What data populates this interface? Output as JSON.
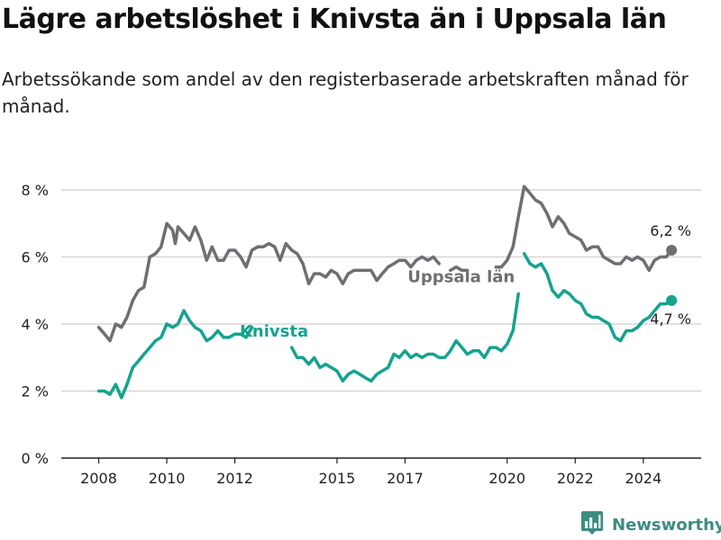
{
  "title": "Lägre arbetslöshet i Knivsta än i Uppsala län",
  "subtitle": "Arbetssökande som andel av den registerbaserade arbetskraften månad för månad.",
  "brand": "Newsworthy",
  "colors": {
    "uppsala": "#6e6e73",
    "knivsta": "#14a38f",
    "brand": "#3d8c80"
  },
  "chart_data": {
    "type": "line",
    "title": "",
    "xlabel": "",
    "ylabel": "",
    "ylim": [
      0,
      8
    ],
    "y_ticks": [
      0,
      2,
      4,
      6,
      8
    ],
    "y_tick_labels": [
      "0 %",
      "2 %",
      "4 %",
      "6 %",
      "8 %"
    ],
    "x_ticks": [
      2008,
      2010,
      2012,
      2015,
      2017,
      2020,
      2022,
      2024
    ],
    "x_tick_labels": [
      "2008",
      "2010",
      "2012",
      "2015",
      "2017",
      "2020",
      "2022",
      "2024"
    ],
    "grid": true,
    "series": [
      {
        "name": "Uppsala län",
        "end_label": "6,2 %",
        "points": [
          [
            2008.0,
            3.9
          ],
          [
            2008.17,
            3.7
          ],
          [
            2008.33,
            3.5
          ],
          [
            2008.5,
            4.0
          ],
          [
            2008.67,
            3.9
          ],
          [
            2008.83,
            4.2
          ],
          [
            2009.0,
            4.7
          ],
          [
            2009.17,
            5.0
          ],
          [
            2009.33,
            5.1
          ],
          [
            2009.5,
            6.0
          ],
          [
            2009.67,
            6.1
          ],
          [
            2009.83,
            6.3
          ],
          [
            2010.0,
            7.0
          ],
          [
            2010.17,
            6.8
          ],
          [
            2010.25,
            6.4
          ],
          [
            2010.33,
            6.9
          ],
          [
            2010.5,
            6.7
          ],
          [
            2010.67,
            6.5
          ],
          [
            2010.83,
            6.9
          ],
          [
            2011.0,
            6.5
          ],
          [
            2011.17,
            5.9
          ],
          [
            2011.33,
            6.3
          ],
          [
            2011.5,
            5.9
          ],
          [
            2011.67,
            5.9
          ],
          [
            2011.83,
            6.2
          ],
          [
            2012.0,
            6.2
          ],
          [
            2012.17,
            6.0
          ],
          [
            2012.33,
            5.7
          ],
          [
            2012.5,
            6.2
          ],
          [
            2012.67,
            6.3
          ],
          [
            2012.83,
            6.3
          ],
          [
            2013.0,
            6.4
          ],
          [
            2013.17,
            6.3
          ],
          [
            2013.33,
            5.9
          ],
          [
            2013.5,
            6.4
          ],
          [
            2013.67,
            6.2
          ],
          [
            2013.83,
            6.1
          ],
          [
            2014.0,
            5.8
          ],
          [
            2014.17,
            5.2
          ],
          [
            2014.33,
            5.5
          ],
          [
            2014.5,
            5.5
          ],
          [
            2014.67,
            5.4
          ],
          [
            2014.83,
            5.6
          ],
          [
            2015.0,
            5.5
          ],
          [
            2015.17,
            5.2
          ],
          [
            2015.33,
            5.5
          ],
          [
            2015.5,
            5.6
          ],
          [
            2015.67,
            5.6
          ],
          [
            2015.83,
            5.6
          ],
          [
            2016.0,
            5.6
          ],
          [
            2016.17,
            5.3
          ],
          [
            2016.33,
            5.5
          ],
          [
            2016.5,
            5.7
          ],
          [
            2016.67,
            5.8
          ],
          [
            2016.83,
            5.9
          ],
          [
            2017.0,
            5.9
          ],
          [
            2017.17,
            5.7
          ],
          [
            2017.33,
            5.9
          ],
          [
            2017.5,
            6.0
          ],
          [
            2017.67,
            5.9
          ],
          [
            2017.83,
            6.0
          ],
          [
            2018.0,
            5.8
          ]
        ]
      },
      {
        "name": "Uppsala län",
        "points": [
          [
            2018.33,
            5.6
          ],
          [
            2018.5,
            5.7
          ],
          [
            2018.67,
            5.6
          ],
          [
            2018.83,
            5.6
          ]
        ]
      },
      {
        "name": "Uppsala län",
        "points": [
          [
            2019.67,
            5.7
          ],
          [
            2019.83,
            5.7
          ],
          [
            2020.0,
            5.9
          ],
          [
            2020.17,
            6.3
          ],
          [
            2020.33,
            7.2
          ],
          [
            2020.5,
            8.1
          ],
          [
            2020.67,
            7.9
          ],
          [
            2020.83,
            7.7
          ],
          [
            2021.0,
            7.6
          ],
          [
            2021.17,
            7.3
          ],
          [
            2021.33,
            6.9
          ],
          [
            2021.5,
            7.2
          ],
          [
            2021.67,
            7.0
          ],
          [
            2021.83,
            6.7
          ],
          [
            2022.0,
            6.6
          ],
          [
            2022.17,
            6.5
          ],
          [
            2022.33,
            6.2
          ],
          [
            2022.5,
            6.3
          ],
          [
            2022.67,
            6.3
          ],
          [
            2022.83,
            6.0
          ],
          [
            2023.0,
            5.9
          ],
          [
            2023.17,
            5.8
          ],
          [
            2023.33,
            5.8
          ],
          [
            2023.5,
            6.0
          ],
          [
            2023.67,
            5.9
          ],
          [
            2023.83,
            6.0
          ],
          [
            2024.0,
            5.9
          ],
          [
            2024.17,
            5.6
          ],
          [
            2024.33,
            5.9
          ],
          [
            2024.5,
            6.0
          ],
          [
            2024.67,
            6.0
          ],
          [
            2024.83,
            6.2
          ]
        ]
      },
      {
        "name": "Knivsta",
        "end_label": "4,7 %",
        "points": [
          [
            2008.0,
            2.0
          ],
          [
            2008.17,
            2.0
          ],
          [
            2008.33,
            1.9
          ],
          [
            2008.5,
            2.2
          ],
          [
            2008.67,
            1.8
          ],
          [
            2008.83,
            2.2
          ],
          [
            2009.0,
            2.7
          ],
          [
            2009.17,
            2.9
          ],
          [
            2009.33,
            3.1
          ],
          [
            2009.5,
            3.3
          ],
          [
            2009.67,
            3.5
          ],
          [
            2009.83,
            3.6
          ],
          [
            2010.0,
            4.0
          ],
          [
            2010.17,
            3.9
          ],
          [
            2010.33,
            4.0
          ],
          [
            2010.5,
            4.4
          ],
          [
            2010.67,
            4.1
          ],
          [
            2010.83,
            3.9
          ],
          [
            2011.0,
            3.8
          ],
          [
            2011.17,
            3.5
          ],
          [
            2011.33,
            3.6
          ],
          [
            2011.5,
            3.8
          ],
          [
            2011.67,
            3.6
          ],
          [
            2011.83,
            3.6
          ],
          [
            2012.0,
            3.7
          ],
          [
            2012.17,
            3.7
          ],
          [
            2012.33,
            3.6
          ],
          [
            2012.5,
            3.9
          ]
        ]
      },
      {
        "name": "Knivsta",
        "points": [
          [
            2013.67,
            3.3
          ],
          [
            2013.83,
            3.0
          ],
          [
            2014.0,
            3.0
          ],
          [
            2014.17,
            2.8
          ],
          [
            2014.33,
            3.0
          ],
          [
            2014.5,
            2.7
          ],
          [
            2014.67,
            2.8
          ],
          [
            2014.83,
            2.7
          ],
          [
            2015.0,
            2.6
          ],
          [
            2015.17,
            2.3
          ],
          [
            2015.33,
            2.5
          ],
          [
            2015.5,
            2.6
          ],
          [
            2015.67,
            2.5
          ],
          [
            2015.83,
            2.4
          ],
          [
            2016.0,
            2.3
          ],
          [
            2016.17,
            2.5
          ],
          [
            2016.33,
            2.6
          ],
          [
            2016.5,
            2.7
          ],
          [
            2016.67,
            3.1
          ],
          [
            2016.83,
            3.0
          ],
          [
            2017.0,
            3.2
          ],
          [
            2017.17,
            3.0
          ],
          [
            2017.33,
            3.1
          ],
          [
            2017.5,
            3.0
          ],
          [
            2017.67,
            3.1
          ],
          [
            2017.83,
            3.1
          ],
          [
            2018.0,
            3.0
          ],
          [
            2018.17,
            3.0
          ],
          [
            2018.33,
            3.2
          ],
          [
            2018.5,
            3.5
          ],
          [
            2018.67,
            3.3
          ],
          [
            2018.83,
            3.1
          ],
          [
            2019.0,
            3.2
          ],
          [
            2019.17,
            3.2
          ],
          [
            2019.33,
            3.0
          ],
          [
            2019.5,
            3.3
          ],
          [
            2019.67,
            3.3
          ],
          [
            2019.83,
            3.2
          ],
          [
            2020.0,
            3.4
          ],
          [
            2020.17,
            3.8
          ],
          [
            2020.33,
            4.9
          ]
        ]
      },
      {
        "name": "Knivsta",
        "points": [
          [
            2020.5,
            6.1
          ],
          [
            2020.67,
            5.8
          ],
          [
            2020.83,
            5.7
          ],
          [
            2021.0,
            5.8
          ],
          [
            2021.17,
            5.5
          ],
          [
            2021.33,
            5.0
          ],
          [
            2021.5,
            4.8
          ],
          [
            2021.67,
            5.0
          ],
          [
            2021.83,
            4.9
          ],
          [
            2022.0,
            4.7
          ],
          [
            2022.17,
            4.6
          ],
          [
            2022.33,
            4.3
          ],
          [
            2022.5,
            4.2
          ],
          [
            2022.67,
            4.2
          ],
          [
            2022.83,
            4.1
          ],
          [
            2023.0,
            4.0
          ],
          [
            2023.17,
            3.6
          ],
          [
            2023.33,
            3.5
          ],
          [
            2023.5,
            3.8
          ],
          [
            2023.67,
            3.8
          ],
          [
            2023.83,
            3.9
          ],
          [
            2024.0,
            4.1
          ],
          [
            2024.17,
            4.2
          ],
          [
            2024.33,
            4.4
          ],
          [
            2024.5,
            4.6
          ],
          [
            2024.67,
            4.6
          ],
          [
            2024.83,
            4.7
          ]
        ]
      }
    ]
  }
}
